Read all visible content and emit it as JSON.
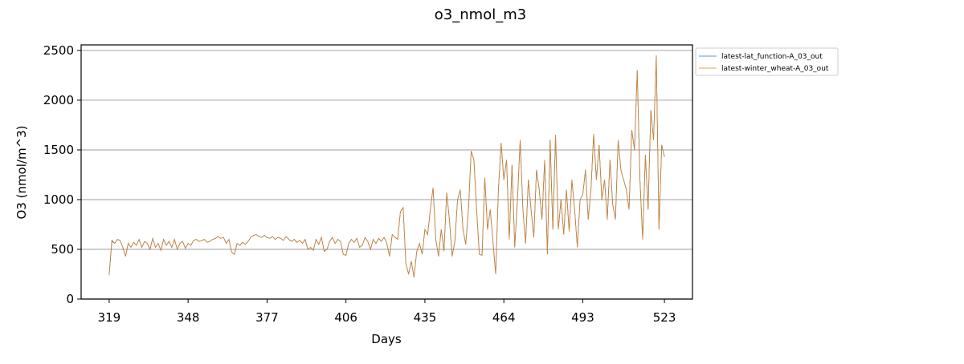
{
  "chart_data": {
    "type": "line",
    "title": "o3_nmol_m3",
    "xlabel": "Days",
    "ylabel": "O3 (nmol/m^3)",
    "x": [
      319,
      320,
      321,
      322,
      323,
      324,
      325,
      326,
      327,
      328,
      329,
      330,
      331,
      332,
      333,
      334,
      335,
      336,
      337,
      338,
      339,
      340,
      341,
      342,
      343,
      344,
      345,
      346,
      347,
      348,
      349,
      350,
      351,
      352,
      353,
      354,
      355,
      356,
      357,
      358,
      359,
      360,
      361,
      362,
      363,
      364,
      365,
      366,
      367,
      368,
      369,
      370,
      371,
      372,
      373,
      374,
      375,
      376,
      377,
      378,
      379,
      380,
      381,
      382,
      383,
      384,
      385,
      386,
      387,
      388,
      389,
      390,
      391,
      392,
      393,
      394,
      395,
      396,
      397,
      398,
      399,
      400,
      401,
      402,
      403,
      404,
      405,
      406,
      407,
      408,
      409,
      410,
      411,
      412,
      413,
      414,
      415,
      416,
      417,
      418,
      419,
      420,
      421,
      422,
      423,
      424,
      425,
      426,
      427,
      428,
      429,
      430,
      431,
      432,
      433,
      434,
      435,
      436,
      437,
      438,
      439,
      440,
      441,
      442,
      443,
      444,
      445,
      446,
      447,
      448,
      449,
      450,
      451,
      452,
      453,
      454,
      455,
      456,
      457,
      458,
      459,
      460,
      461,
      462,
      463,
      464,
      465,
      466,
      467,
      468,
      469,
      470,
      471,
      472,
      473,
      474,
      475,
      476,
      477,
      478,
      479,
      480,
      481,
      482,
      483,
      484,
      485,
      486,
      487,
      488,
      489,
      490,
      491,
      492,
      493,
      494,
      495,
      496,
      497,
      498,
      499,
      500,
      501,
      502,
      503,
      504,
      505,
      506,
      507,
      508,
      509,
      510,
      511,
      512,
      513,
      514,
      515,
      516,
      517,
      518,
      519,
      520,
      521,
      522,
      523
    ],
    "series": [
      {
        "name": "latest-lat_function-A_03_out",
        "color": "#1f77b4",
        "values": [
          250,
          590,
          560,
          600,
          590,
          520,
          430,
          560,
          520,
          570,
          540,
          600,
          520,
          580,
          560,
          500,
          610,
          520,
          560,
          490,
          600,
          540,
          580,
          520,
          600,
          500,
          560,
          580,
          510,
          560,
          540,
          590,
          600,
          580,
          590,
          600,
          570,
          580,
          600,
          610,
          630,
          610,
          620,
          560,
          600,
          470,
          450,
          560,
          540,
          570,
          550,
          580,
          620,
          640,
          650,
          630,
          620,
          640,
          620,
          610,
          630,
          600,
          620,
          610,
          590,
          630,
          600,
          580,
          600,
          570,
          590,
          560,
          600,
          500,
          520,
          490,
          600,
          550,
          620,
          480,
          500,
          580,
          620,
          560,
          600,
          580,
          450,
          440,
          560,
          600,
          570,
          610,
          520,
          540,
          620,
          580,
          500,
          600,
          560,
          610,
          580,
          620,
          560,
          430,
          650,
          620,
          600,
          880,
          920,
          360,
          250,
          380,
          220,
          480,
          560,
          450,
          700,
          650,
          900,
          1120,
          600,
          430,
          700,
          480,
          1070,
          800,
          430,
          580,
          1000,
          1100,
          700,
          550,
          900,
          1490,
          1400,
          900,
          450,
          440,
          1220,
          700,
          900,
          580,
          250,
          1100,
          1570,
          1200,
          1400,
          600,
          1350,
          520,
          1000,
          1600,
          900,
          560,
          1200,
          900,
          620,
          1300,
          1100,
          800,
          1400,
          450,
          1600,
          700,
          1650,
          700,
          1000,
          650,
          1100,
          680,
          1200,
          900,
          520,
          1000,
          1050,
          1300,
          800,
          1100,
          1660,
          1200,
          1550,
          1000,
          1200,
          800,
          1400,
          950,
          800,
          1600,
          1300,
          1200,
          1100,
          900,
          1700,
          1500,
          2300,
          1200,
          600,
          1450,
          900,
          1900,
          1600,
          2450,
          700,
          1550,
          1430
        ]
      },
      {
        "name": "latest-winter_wheat-A_03_out",
        "color": "#d9822b",
        "values": [
          240,
          580,
          560,
          600,
          590,
          520,
          430,
          560,
          520,
          570,
          540,
          600,
          520,
          580,
          560,
          500,
          610,
          520,
          560,
          490,
          600,
          540,
          580,
          520,
          600,
          500,
          560,
          580,
          510,
          560,
          540,
          590,
          600,
          580,
          590,
          600,
          570,
          580,
          600,
          610,
          630,
          610,
          620,
          560,
          600,
          470,
          450,
          560,
          540,
          570,
          550,
          580,
          620,
          640,
          650,
          630,
          620,
          640,
          620,
          610,
          630,
          600,
          620,
          610,
          590,
          630,
          600,
          580,
          600,
          570,
          590,
          560,
          600,
          500,
          520,
          490,
          600,
          550,
          620,
          480,
          500,
          580,
          620,
          560,
          600,
          580,
          450,
          440,
          560,
          600,
          570,
          610,
          520,
          540,
          620,
          580,
          500,
          600,
          560,
          610,
          580,
          620,
          560,
          430,
          650,
          620,
          600,
          880,
          920,
          360,
          250,
          380,
          220,
          480,
          560,
          450,
          700,
          650,
          900,
          1120,
          600,
          430,
          700,
          480,
          1070,
          800,
          430,
          580,
          1000,
          1100,
          700,
          550,
          900,
          1490,
          1400,
          900,
          450,
          440,
          1220,
          700,
          900,
          580,
          250,
          1100,
          1570,
          1200,
          1400,
          600,
          1350,
          520,
          1000,
          1600,
          900,
          560,
          1200,
          900,
          620,
          1300,
          1100,
          800,
          1400,
          450,
          1600,
          700,
          1650,
          700,
          1000,
          650,
          1100,
          680,
          1200,
          900,
          520,
          1000,
          1050,
          1300,
          800,
          1100,
          1660,
          1200,
          1550,
          1000,
          1200,
          800,
          1400,
          950,
          800,
          1600,
          1300,
          1200,
          1100,
          900,
          1700,
          1500,
          2300,
          1200,
          600,
          1450,
          900,
          1900,
          1600,
          2450,
          700,
          1550,
          1430
        ]
      }
    ],
    "xlim": [
      308.7,
      533.3
    ],
    "ylim": [
      0,
      2556
    ],
    "xticks": [
      319,
      348,
      377,
      406,
      435,
      464,
      493,
      523
    ],
    "yticks": [
      0,
      500,
      1000,
      1500,
      2000,
      2500
    ],
    "grid": true,
    "legend": "outside upper right"
  }
}
